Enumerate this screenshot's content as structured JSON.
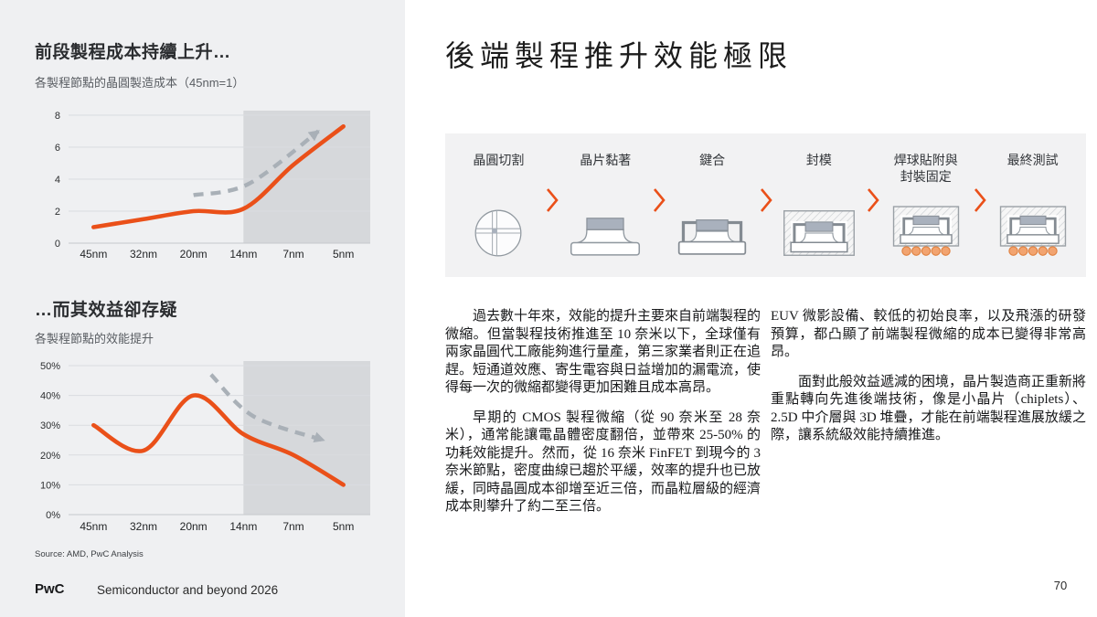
{
  "left_panel": {
    "section1": {
      "title": "前段製程成本持續上升…",
      "subtitle": "各製程節點的晶圓製造成本（45nm=1）"
    },
    "section2": {
      "title": "…而其效益卻存疑",
      "subtitle": "各製程節點的效能提升"
    },
    "source": "Source: AMD, PwC Analysis",
    "footer": {
      "logo": "PwC",
      "report_title": "Semiconductor and beyond 2026"
    }
  },
  "main": {
    "title": "後端製程推升效能極限",
    "process_flow": {
      "steps": [
        {
          "label": "晶圓切割",
          "icon": "wafer-dicing-icon"
        },
        {
          "label": "晶片黏著",
          "icon": "die-attach-icon"
        },
        {
          "label": "鍵合",
          "icon": "wire-bonding-icon"
        },
        {
          "label": "封模",
          "icon": "molding-icon"
        },
        {
          "label": "焊球貼附與\n封裝固定",
          "icon": "ball-attach-icon"
        },
        {
          "label": "最終測試",
          "icon": "final-test-icon"
        }
      ],
      "separator_icon": "chevron-right-icon"
    },
    "body": {
      "column1": [
        {
          "indent": true,
          "text": "過去數十年來，效能的提升主要來自前端製程的微縮。但當製程技術推進至 10 奈米以下，全球僅有兩家晶圓代工廠能夠進行量產，第三家業者則正在追趕。短通道效應、寄生電容與日益增加的漏電流，使得每一次的微縮都變得更加困難且成本高昂。"
        },
        {
          "indent": true,
          "text": "早期的 CMOS 製程微縮（從 90 奈米至 28 奈米），通常能讓電晶體密度翻倍，並帶來 25-50% 的功耗效能提升。然而，從 16 奈米 FinFET 到現今的 3 奈米節點，密度曲線已趨於平緩，效率的提升也已放緩，同時晶圓成本卻增至近三倍，而晶粒層級的經濟成本則攀升了約二至三倍。"
        }
      ],
      "column2": [
        {
          "indent": false,
          "text": "EUV 微影設備、較低的初始良率，以及飛漲的研發預算，都凸顯了前端製程微縮的成本已變得非常高昂。"
        },
        {
          "indent": true,
          "text": "面對此般效益遞減的困境，晶片製造商正重新將重點轉向先進後端技術，像是小晶片（chiplets）、2.5D 中介層與 3D 堆疊，才能在前端製程進展放緩之際，讓系統級效能持續推進。"
        }
      ]
    },
    "page_number": "70"
  },
  "colors": {
    "accent_orange": "#ea5019",
    "trend_gray": "#a9b0b7",
    "highlight_band": "#d6d8db",
    "panel_bg": "#eff0f2",
    "flow_band_bg": "#f2f2f3",
    "die_fill": "#a9b1bd",
    "ball_fill": "#f2a470"
  },
  "chart_data": [
    {
      "type": "line",
      "title": "前段製程成本持續上升…",
      "subtitle": "各製程節點的晶圓製造成本（45nm=1）",
      "categories": [
        "45nm",
        "32nm",
        "20nm",
        "14nm",
        "7nm",
        "5nm"
      ],
      "series": [
        {
          "name": "晶圓製造成本",
          "style": "solid-orange",
          "values": [
            1,
            1.5,
            2.0,
            2.15,
            4.9,
            7.3
          ]
        },
        {
          "name": "趨勢箭頭",
          "style": "dashed-gray-arrow",
          "points": [
            [
              2.0,
              3.0
            ],
            [
              3.1,
              3.7
            ],
            [
              4.5,
              7.0
            ]
          ]
        }
      ],
      "ylim": [
        0,
        8
      ],
      "yticks": [
        0,
        2,
        4,
        6,
        8
      ],
      "ytick_suffix": "",
      "highlight_from_category": "14nm",
      "grid": true,
      "legend": false
    },
    {
      "type": "line",
      "title": "…而其效益卻存疑",
      "subtitle": "各製程節點的效能提升",
      "categories": [
        "45nm",
        "32nm",
        "20nm",
        "14nm",
        "7nm",
        "5nm"
      ],
      "series": [
        {
          "name": "效能提升",
          "style": "solid-orange",
          "values": [
            30,
            21.5,
            40,
            27,
            20,
            10
          ]
        },
        {
          "name": "趨勢箭頭",
          "style": "dashed-gray-arrow",
          "points": [
            [
              2.35,
              47
            ],
            [
              3.2,
              33
            ],
            [
              4.6,
              25
            ]
          ]
        }
      ],
      "ylim": [
        0,
        50
      ],
      "yticks": [
        0,
        10,
        20,
        30,
        40,
        50
      ],
      "ytick_suffix": "%",
      "highlight_from_category": "14nm",
      "grid": true,
      "legend": false
    }
  ]
}
